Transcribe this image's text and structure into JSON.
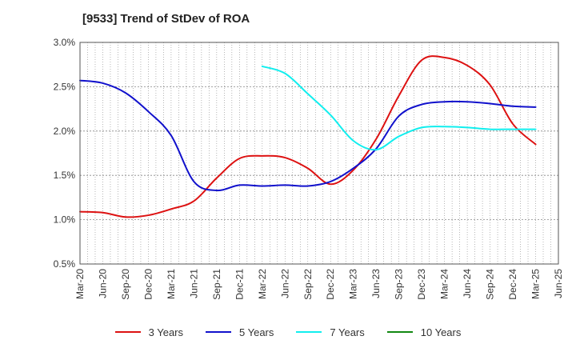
{
  "title": "[9533]  Trend of StDev of ROA",
  "chart_data": {
    "type": "line",
    "title": "[9533]  Trend of StDev of ROA",
    "xlabel": "",
    "ylabel": "",
    "ylim": [
      0.5,
      3.0
    ],
    "y_ticks": [
      "0.5%",
      "1.0%",
      "1.5%",
      "2.0%",
      "2.5%",
      "3.0%"
    ],
    "x_ticks": [
      "Mar-20",
      "Jun-20",
      "Sep-20",
      "Dec-20",
      "Mar-21",
      "Jun-21",
      "Sep-21",
      "Dec-21",
      "Mar-22",
      "Jun-22",
      "Sep-22",
      "Dec-22",
      "Mar-23",
      "Jun-23",
      "Sep-23",
      "Dec-23",
      "Mar-24",
      "Jun-24",
      "Sep-24",
      "Dec-24",
      "Mar-25",
      "Jun-25"
    ],
    "grid": true,
    "legend_position": "bottom",
    "series": [
      {
        "name": "3 Years",
        "color": "#dd1111",
        "points": [
          [
            0,
            1.09
          ],
          [
            1,
            1.08
          ],
          [
            2,
            1.03
          ],
          [
            3,
            1.05
          ],
          [
            4,
            1.12
          ],
          [
            5,
            1.21
          ],
          [
            6,
            1.47
          ],
          [
            7,
            1.69
          ],
          [
            8,
            1.72
          ],
          [
            9,
            1.7
          ],
          [
            10,
            1.58
          ],
          [
            11,
            1.4
          ],
          [
            12,
            1.56
          ],
          [
            13,
            1.91
          ],
          [
            14,
            2.4
          ],
          [
            15,
            2.8
          ],
          [
            16,
            2.83
          ],
          [
            17,
            2.74
          ],
          [
            18,
            2.52
          ],
          [
            19,
            2.08
          ],
          [
            20,
            1.85
          ]
        ]
      },
      {
        "name": "5 Years",
        "color": "#1111cc",
        "points": [
          [
            0,
            2.57
          ],
          [
            1,
            2.54
          ],
          [
            2,
            2.43
          ],
          [
            3,
            2.22
          ],
          [
            4,
            1.95
          ],
          [
            5,
            1.43
          ],
          [
            6,
            1.33
          ],
          [
            7,
            1.39
          ],
          [
            8,
            1.38
          ],
          [
            9,
            1.39
          ],
          [
            10,
            1.38
          ],
          [
            11,
            1.43
          ],
          [
            12,
            1.58
          ],
          [
            13,
            1.8
          ],
          [
            14,
            2.17
          ],
          [
            15,
            2.3
          ],
          [
            16,
            2.33
          ],
          [
            17,
            2.33
          ],
          [
            18,
            2.31
          ],
          [
            19,
            2.28
          ],
          [
            20,
            2.27
          ]
        ]
      },
      {
        "name": "7 Years",
        "color": "#11eeee",
        "points": [
          [
            8,
            2.73
          ],
          [
            9,
            2.65
          ],
          [
            10,
            2.42
          ],
          [
            11,
            2.18
          ],
          [
            12,
            1.89
          ],
          [
            13,
            1.79
          ],
          [
            14,
            1.94
          ],
          [
            15,
            2.04
          ],
          [
            16,
            2.05
          ],
          [
            17,
            2.04
          ],
          [
            18,
            2.02
          ],
          [
            19,
            2.02
          ],
          [
            20,
            2.02
          ]
        ]
      },
      {
        "name": "10 Years",
        "color": "#118811",
        "points": []
      }
    ]
  }
}
